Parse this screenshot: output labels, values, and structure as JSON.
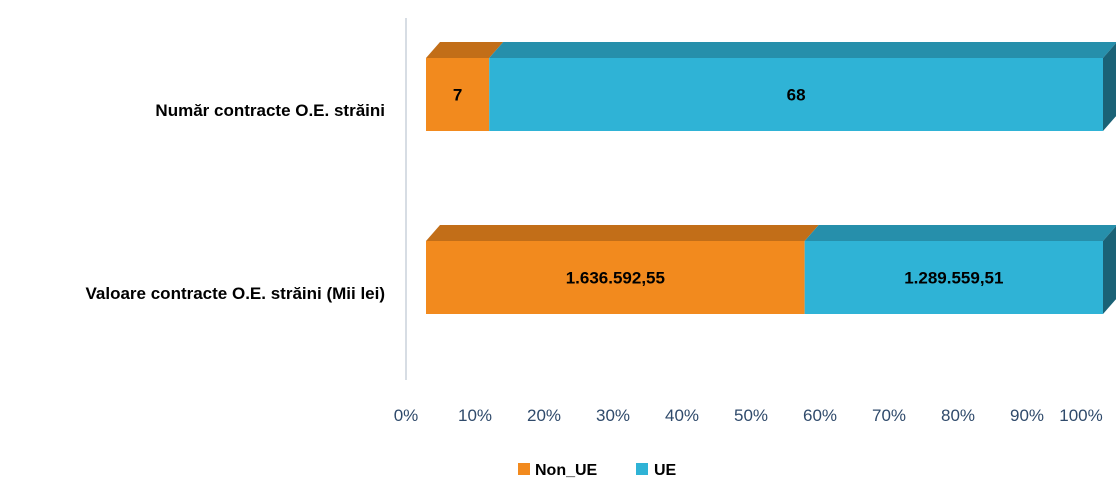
{
  "chart_data": {
    "type": "bar",
    "orientation": "horizontal",
    "stacking": "percent",
    "style": "3d",
    "categories": [
      "Număr contracte O.E. străini",
      "Valoare contracte O.E. străini (Mii lei)"
    ],
    "series": [
      {
        "name": "Non_UE",
        "color": "#f28a1e",
        "values": [
          7,
          1636592.55
        ],
        "labels": [
          "7",
          "1.636.592,55"
        ]
      },
      {
        "name": "UE",
        "color": "#2fb3d6",
        "values": [
          68,
          1289559.51
        ],
        "labels": [
          "68",
          "1.289.559,51"
        ]
      }
    ],
    "xlim": [
      0,
      100
    ],
    "xticks": [
      "0%",
      "10%",
      "20%",
      "30%",
      "40%",
      "50%",
      "60%",
      "70%",
      "80%",
      "90%",
      "100%"
    ],
    "legend": "bottom",
    "grid": false
  }
}
